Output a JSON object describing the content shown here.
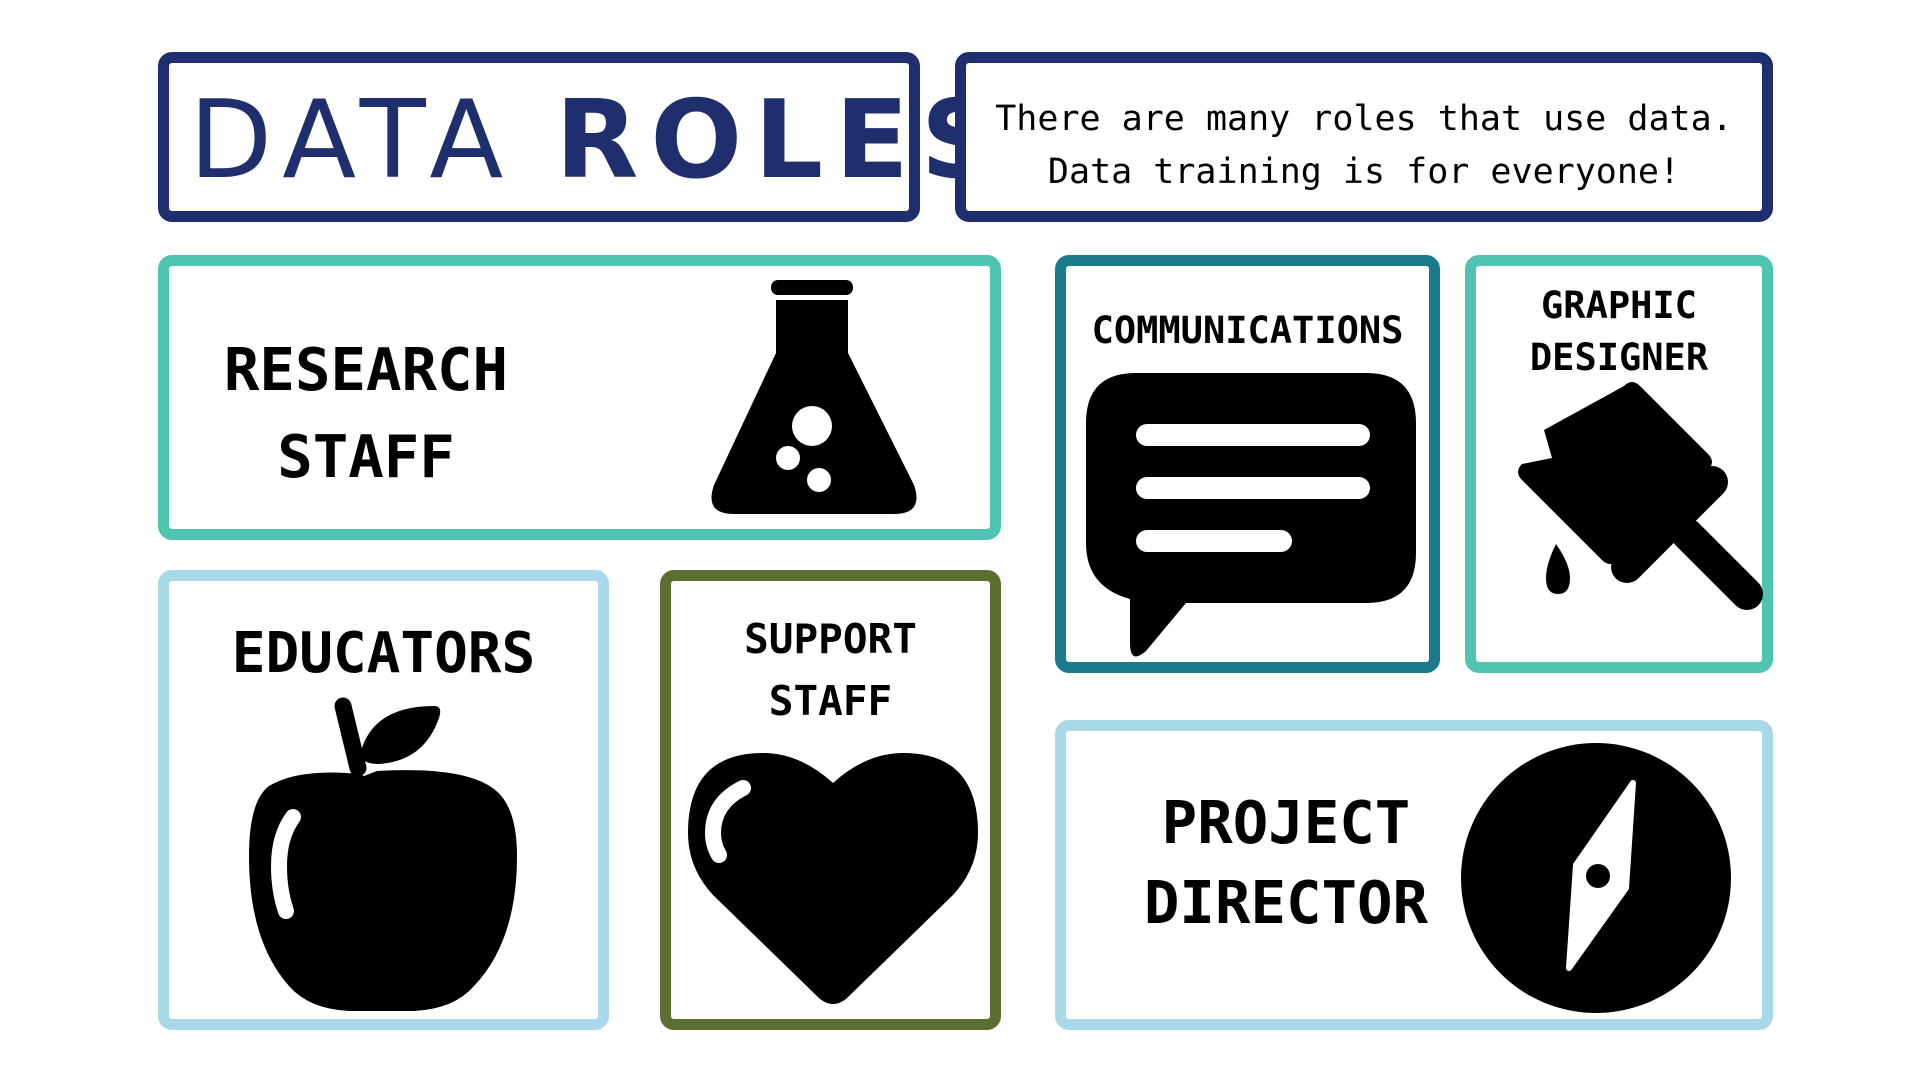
{
  "header": {
    "title_light": "DATA",
    "title_bold": "ROLES",
    "tagline_line1": "There are many roles that use data.",
    "tagline_line2": "Data training is for everyone!"
  },
  "roles": {
    "research_staff": {
      "line1": "RESEARCH",
      "line2": "STAFF",
      "icon": "flask-icon"
    },
    "communications": {
      "line1": "COMMUNICATIONS",
      "icon": "chat-bubble-icon"
    },
    "graphic_designer": {
      "line1": "GRAPHIC",
      "line2": "DESIGNER",
      "icon": "paint-roller-icon"
    },
    "educators": {
      "line1": "EDUCATORS",
      "icon": "apple-icon"
    },
    "support_staff": {
      "line1": "SUPPORT",
      "line2": "STAFF",
      "icon": "heart-icon"
    },
    "project_director": {
      "line1": "PROJECT",
      "line2": "DIRECTOR",
      "icon": "compass-icon"
    }
  },
  "colors": {
    "navy": "#1f2f6e",
    "teal": "#4fc4b0",
    "dark_teal": "#197a8c",
    "light_blue": "#a9d9e8",
    "olive": "#5c6f31"
  }
}
